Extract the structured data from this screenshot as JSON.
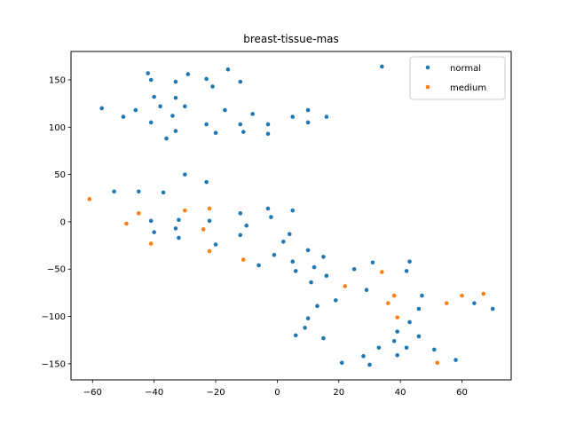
{
  "chart_data": {
    "type": "scatter",
    "title": "breast-tissue-mas",
    "xlabel": "",
    "ylabel": "",
    "xlim": [
      -67,
      76
    ],
    "ylim": [
      -167,
      180
    ],
    "xticks": [
      -60,
      -40,
      -20,
      0,
      20,
      40,
      60
    ],
    "yticks": [
      -150,
      -100,
      -50,
      0,
      50,
      100,
      150
    ],
    "grid": false,
    "legend_position": "upper right",
    "series": [
      {
        "name": "normal",
        "color": "#1f77b4",
        "points": [
          [
            -42,
            157
          ],
          [
            -41,
            150
          ],
          [
            -29,
            156
          ],
          [
            -16,
            161
          ],
          [
            -23,
            151
          ],
          [
            -12,
            148
          ],
          [
            -33,
            148
          ],
          [
            -21,
            143
          ],
          [
            34,
            164
          ],
          [
            -57,
            120
          ],
          [
            -46,
            118
          ],
          [
            -50,
            111
          ],
          [
            -40,
            132
          ],
          [
            -38,
            122
          ],
          [
            -33,
            131
          ],
          [
            -30,
            122
          ],
          [
            -34,
            112
          ],
          [
            -17,
            118
          ],
          [
            -8,
            114
          ],
          [
            -3,
            103
          ],
          [
            -12,
            103
          ],
          [
            -11,
            95
          ],
          [
            -23,
            103
          ],
          [
            -20,
            94
          ],
          [
            -3,
            93
          ],
          [
            -33,
            96
          ],
          [
            -36,
            88
          ],
          [
            5,
            111
          ],
          [
            10,
            118
          ],
          [
            16,
            111
          ],
          [
            10,
            105
          ],
          [
            -41,
            105
          ],
          [
            -30,
            50
          ],
          [
            -23,
            42
          ],
          [
            -53,
            32
          ],
          [
            -45,
            32
          ],
          [
            -37,
            31
          ],
          [
            -41,
            1
          ],
          [
            -40,
            -11
          ],
          [
            -32,
            2
          ],
          [
            -33,
            -7
          ],
          [
            -32,
            -17
          ],
          [
            -22,
            1
          ],
          [
            -20,
            -24
          ],
          [
            -12,
            9
          ],
          [
            -10,
            -4
          ],
          [
            -12,
            -14
          ],
          [
            -3,
            14
          ],
          [
            -2,
            5
          ],
          [
            5,
            12
          ],
          [
            4,
            -13
          ],
          [
            2,
            -21
          ],
          [
            -1,
            -35
          ],
          [
            -6,
            -46
          ],
          [
            5,
            -42
          ],
          [
            6,
            -52
          ],
          [
            10,
            -30
          ],
          [
            12,
            -48
          ],
          [
            11,
            -64
          ],
          [
            15,
            -37
          ],
          [
            16,
            -57
          ],
          [
            13,
            -89
          ],
          [
            19,
            -83
          ],
          [
            10,
            -102
          ],
          [
            9,
            -112
          ],
          [
            6,
            -120
          ],
          [
            15,
            -123
          ],
          [
            25,
            -50
          ],
          [
            29,
            -72
          ],
          [
            31,
            -43
          ],
          [
            43,
            -42
          ],
          [
            42,
            -52
          ],
          [
            47,
            -78
          ],
          [
            46,
            -92
          ],
          [
            43,
            -106
          ],
          [
            39,
            -116
          ],
          [
            38,
            -126
          ],
          [
            39,
            -141
          ],
          [
            42,
            -133
          ],
          [
            46,
            -121
          ],
          [
            51,
            -135
          ],
          [
            58,
            -146
          ],
          [
            64,
            -86
          ],
          [
            70,
            -92
          ],
          [
            33,
            -133
          ],
          [
            28,
            -142
          ],
          [
            30,
            -151
          ],
          [
            21,
            -149
          ]
        ]
      },
      {
        "name": "medium",
        "color": "#ff7f0e",
        "points": [
          [
            -61,
            24
          ],
          [
            -45,
            9
          ],
          [
            -49,
            -2
          ],
          [
            -41,
            -23
          ],
          [
            -30,
            12
          ],
          [
            -22,
            14
          ],
          [
            -24,
            -8
          ],
          [
            -22,
            -31
          ],
          [
            -11,
            -40
          ],
          [
            22,
            -68
          ],
          [
            34,
            -53
          ],
          [
            36,
            -86
          ],
          [
            38,
            -78
          ],
          [
            39,
            -101
          ],
          [
            55,
            -86
          ],
          [
            60,
            -78
          ],
          [
            67,
            -76
          ],
          [
            52,
            -149
          ]
        ]
      }
    ]
  }
}
